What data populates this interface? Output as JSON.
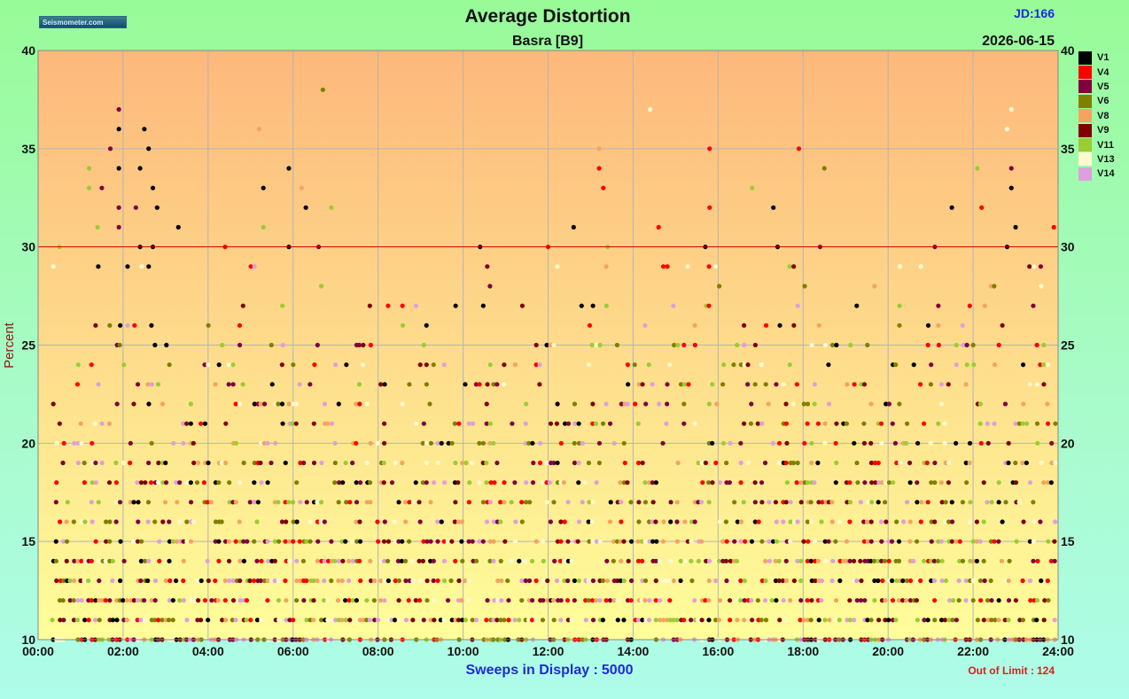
{
  "header": {
    "logo_text": "Seismometer.com",
    "title": "Average Distortion",
    "subtitle": "Basra  [B9]",
    "jd": "JD:166",
    "date": "2026-06-15"
  },
  "footer": {
    "sweeps_label": "Sweeps in Display :",
    "sweeps_value": "5000",
    "out_of_limit_label": "Out of Limit :",
    "out_of_limit_value": "124"
  },
  "chart_data": {
    "type": "scatter",
    "title": "Average Distortion",
    "subtitle": "Basra  [B9]",
    "xlabel": "",
    "ylabel": "Percent",
    "xlim": [
      0,
      24
    ],
    "ylim": [
      10,
      40
    ],
    "x_ticks": [
      "00:00",
      "02:00",
      "04:00",
      "06:00",
      "08:00",
      "10:00",
      "12:00",
      "14:00",
      "16:00",
      "18:00",
      "20:00",
      "22:00",
      "24:00"
    ],
    "y_ticks": [
      10,
      15,
      20,
      25,
      30,
      35,
      40
    ],
    "limit_line": 30,
    "grid": true,
    "legend_position": "right",
    "background_gradient": [
      "#fdb87c",
      "#fefe9a"
    ],
    "series": [
      {
        "name": "V1",
        "color": "#000000"
      },
      {
        "name": "V4",
        "color": "#ff0000"
      },
      {
        "name": "V5",
        "color": "#800040"
      },
      {
        "name": "V6",
        "color": "#808000"
      },
      {
        "name": "V8",
        "color": "#f4a460"
      },
      {
        "name": "V9",
        "color": "#800000"
      },
      {
        "name": "V11",
        "color": "#9acd32"
      },
      {
        "name": "V13",
        "color": "#fffacd"
      },
      {
        "name": "V14",
        "color": "#dda0dd"
      }
    ],
    "points": [
      {
        "s": "V5",
        "x": 1.9,
        "y": 37
      },
      {
        "s": "V1",
        "x": 1.9,
        "y": 36
      },
      {
        "s": "V1",
        "x": 2.5,
        "y": 36
      },
      {
        "s": "V1",
        "x": 2.6,
        "y": 35
      },
      {
        "s": "V5",
        "x": 1.7,
        "y": 35
      },
      {
        "s": "V1",
        "x": 1.9,
        "y": 34
      },
      {
        "s": "V11",
        "x": 1.2,
        "y": 34
      },
      {
        "s": "V1",
        "x": 2.4,
        "y": 34
      },
      {
        "s": "V5",
        "x": 1.5,
        "y": 33
      },
      {
        "s": "V11",
        "x": 1.2,
        "y": 33
      },
      {
        "s": "V1",
        "x": 2.7,
        "y": 33
      },
      {
        "s": "V5",
        "x": 1.9,
        "y": 32
      },
      {
        "s": "V5",
        "x": 2.3,
        "y": 32
      },
      {
        "s": "V1",
        "x": 2.8,
        "y": 32
      },
      {
        "s": "V11",
        "x": 1.4,
        "y": 31
      },
      {
        "s": "V5",
        "x": 1.9,
        "y": 31
      },
      {
        "s": "V1",
        "x": 3.3,
        "y": 31
      },
      {
        "s": "V11",
        "x": 0.5,
        "y": 30
      },
      {
        "s": "V1",
        "x": 2.4,
        "y": 30
      },
      {
        "s": "V1",
        "x": 2.7,
        "y": 30
      },
      {
        "s": "V6",
        "x": 6.7,
        "y": 38
      },
      {
        "s": "V8",
        "x": 5.2,
        "y": 36
      },
      {
        "s": "V1",
        "x": 5.9,
        "y": 34
      },
      {
        "s": "V1",
        "x": 5.3,
        "y": 33
      },
      {
        "s": "V8",
        "x": 6.2,
        "y": 33
      },
      {
        "s": "V1",
        "x": 6.3,
        "y": 32
      },
      {
        "s": "V11",
        "x": 6.9,
        "y": 32
      },
      {
        "s": "V11",
        "x": 5.3,
        "y": 31
      },
      {
        "s": "V1",
        "x": 5.9,
        "y": 30
      },
      {
        "s": "V5",
        "x": 6.6,
        "y": 30
      },
      {
        "s": "V4",
        "x": 4.4,
        "y": 30
      },
      {
        "s": "V13",
        "x": 14.4,
        "y": 37
      },
      {
        "s": "V8",
        "x": 13.2,
        "y": 35
      },
      {
        "s": "V4",
        "x": 13.2,
        "y": 34
      },
      {
        "s": "V4",
        "x": 13.3,
        "y": 33
      },
      {
        "s": "V1",
        "x": 12.6,
        "y": 31
      },
      {
        "s": "V4",
        "x": 14.6,
        "y": 31
      },
      {
        "s": "V1",
        "x": 10.4,
        "y": 30
      },
      {
        "s": "V4",
        "x": 12.0,
        "y": 30
      },
      {
        "s": "V11",
        "x": 13.4,
        "y": 30
      },
      {
        "s": "V4",
        "x": 15.8,
        "y": 35
      },
      {
        "s": "V4",
        "x": 17.9,
        "y": 35
      },
      {
        "s": "V6",
        "x": 18.5,
        "y": 34
      },
      {
        "s": "V11",
        "x": 16.8,
        "y": 33
      },
      {
        "s": "V4",
        "x": 15.8,
        "y": 32
      },
      {
        "s": "V1",
        "x": 17.3,
        "y": 32
      },
      {
        "s": "V1",
        "x": 15.7,
        "y": 30
      },
      {
        "s": "V1",
        "x": 17.4,
        "y": 30
      },
      {
        "s": "V5",
        "x": 18.4,
        "y": 30
      },
      {
        "s": "V13",
        "x": 22.9,
        "y": 37
      },
      {
        "s": "V13",
        "x": 22.8,
        "y": 36
      },
      {
        "s": "V5",
        "x": 22.9,
        "y": 34
      },
      {
        "s": "V11",
        "x": 22.1,
        "y": 34
      },
      {
        "s": "V1",
        "x": 22.9,
        "y": 33
      },
      {
        "s": "V4",
        "x": 22.2,
        "y": 32
      },
      {
        "s": "V1",
        "x": 21.5,
        "y": 32
      },
      {
        "s": "V1",
        "x": 23.0,
        "y": 31
      },
      {
        "s": "V4",
        "x": 23.9,
        "y": 31
      },
      {
        "s": "V1",
        "x": 22.8,
        "y": 30
      },
      {
        "s": "V5",
        "x": 21.1,
        "y": 30
      }
    ],
    "dense_band": {
      "y_range": [
        10,
        29
      ],
      "y_step": 1,
      "description_count": 5000
    }
  }
}
